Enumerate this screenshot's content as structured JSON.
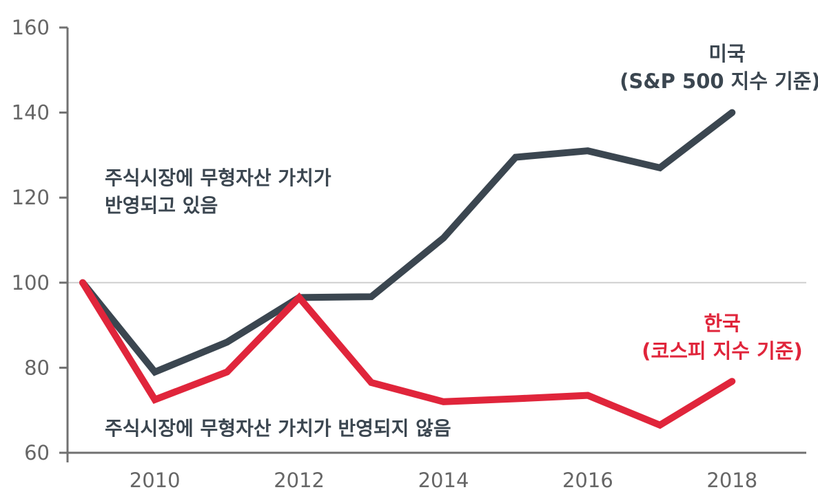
{
  "chart_data": {
    "type": "line",
    "x": [
      2009,
      2010,
      2011,
      2012,
      2013,
      2014,
      2015,
      2016,
      2017,
      2018
    ],
    "series": [
      {
        "name": "미국\n(S&P 500 지수 기준)",
        "color": "#3b4650",
        "values": [
          100,
          79,
          86,
          96.5,
          96.7,
          110.5,
          129.5,
          131,
          127,
          140
        ]
      },
      {
        "name": "한국\n(코스피 지수 기준)",
        "color": "#e0253b",
        "values": [
          100,
          72.5,
          79,
          96.5,
          76.5,
          72,
          72.7,
          73.5,
          66.5,
          76.8
        ]
      }
    ],
    "ylim": [
      60,
      160
    ],
    "y_ticks": [
      "60",
      "80",
      "100",
      "120",
      "140",
      "160"
    ],
    "x_ticks": [
      "2010",
      "2012",
      "2014",
      "2016",
      "2018"
    ],
    "reference_line": 100,
    "annotations": {
      "upper": [
        "주식시장에 무형자산 가치가",
        "반영되고 있음"
      ],
      "lower": "주식시장에 무형자산 가치가 반영되지 않음"
    },
    "series_labels": {
      "us": [
        "미국",
        "(S&P 500 지수 기준)"
      ],
      "kr": [
        "한국",
        "(코스피 지수 기준)"
      ]
    },
    "colors": {
      "axis": "#707070",
      "reference": "#cfcfcf"
    }
  }
}
